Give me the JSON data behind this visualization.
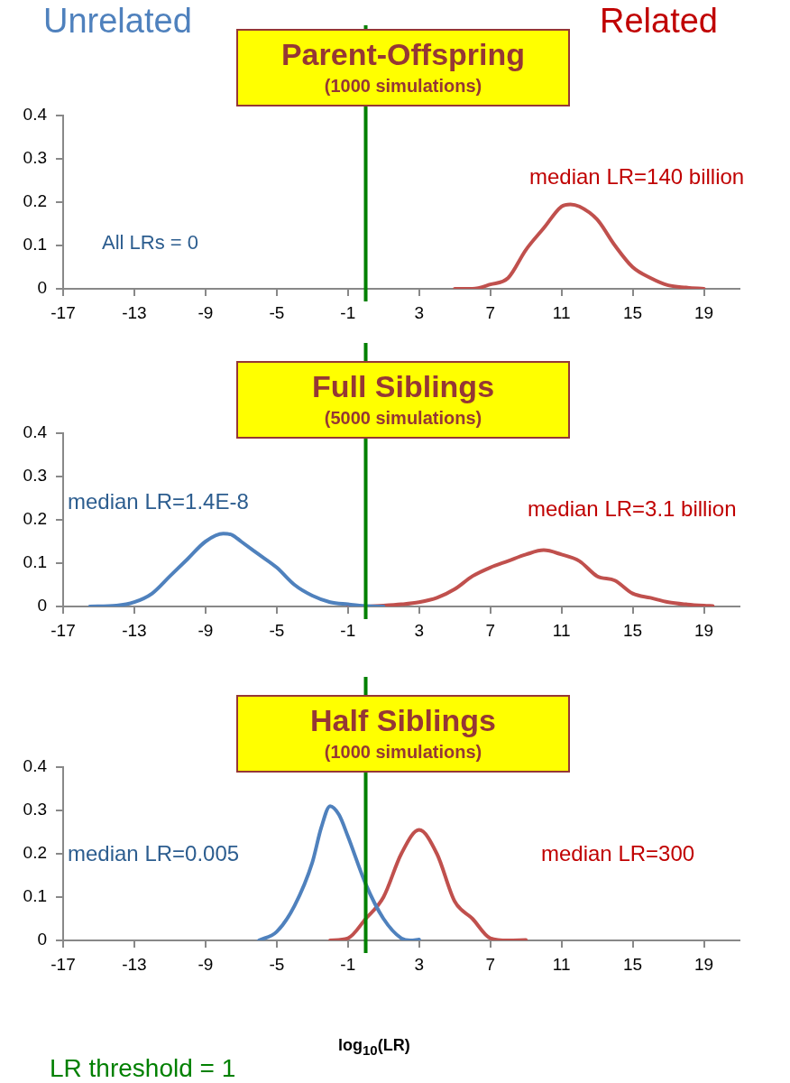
{
  "chart_data": [
    {
      "type": "line",
      "title": "Parent-Offspring",
      "subtitle": "(1000 simulations)",
      "xlim": [
        -17,
        21
      ],
      "xticks": [
        -17,
        -13,
        -9,
        -5,
        -1,
        3,
        7,
        11,
        15,
        19
      ],
      "ylim": [
        0,
        0.4
      ],
      "yticks": [
        0,
        0.1,
        0.2,
        0.3,
        0.4
      ],
      "grid": false,
      "legend": false,
      "marker": "none",
      "line_style": "solid",
      "series": [
        {
          "color": "#c0504d",
          "x": [
            5,
            6,
            7,
            8,
            9,
            10,
            11,
            11.5,
            12,
            13,
            14,
            15,
            16,
            17,
            18,
            19
          ],
          "values": [
            0,
            0,
            0.01,
            0.025,
            0.09,
            0.14,
            0.19,
            0.195,
            0.19,
            0.16,
            0.1,
            0.05,
            0.025,
            0.008,
            0.003,
            0
          ]
        }
      ],
      "ref_lines": [
        {
          "axis": "x",
          "value": 0,
          "color": "#008000"
        }
      ],
      "annotations": [
        "Unrelated",
        "Related",
        "All LRs = 0",
        "median LR=140 billion"
      ]
    },
    {
      "type": "line",
      "title": "Full Siblings",
      "subtitle": "(5000 simulations)",
      "xlim": [
        -17,
        21
      ],
      "xticks": [
        -17,
        -13,
        -9,
        -5,
        -1,
        3,
        7,
        11,
        15,
        19
      ],
      "ylim": [
        0,
        0.4
      ],
      "yticks": [
        0,
        0.1,
        0.2,
        0.3,
        0.4
      ],
      "grid": false,
      "legend": false,
      "marker": "none",
      "line_style": "solid",
      "series": [
        {
          "color": "#4f81bd",
          "x": [
            -15.5,
            -14,
            -13,
            -12,
            -11,
            -10,
            -9,
            -8,
            -7.5,
            -7,
            -6,
            -5,
            -4,
            -3,
            -2,
            -1,
            0,
            1
          ],
          "values": [
            0,
            0.002,
            0.01,
            0.03,
            0.07,
            0.11,
            0.15,
            0.168,
            0.165,
            0.15,
            0.12,
            0.09,
            0.05,
            0.025,
            0.01,
            0.005,
            0.001,
            0
          ]
        },
        {
          "color": "#c0504d",
          "x": [
            -1,
            0,
            1,
            2,
            3,
            4,
            5,
            6,
            7,
            8,
            9,
            10,
            11,
            12,
            13,
            14,
            15,
            16,
            17,
            18,
            19,
            19.5
          ],
          "values": [
            0,
            0,
            0.002,
            0.005,
            0.01,
            0.02,
            0.04,
            0.07,
            0.09,
            0.105,
            0.12,
            0.13,
            0.12,
            0.105,
            0.07,
            0.06,
            0.03,
            0.02,
            0.01,
            0.005,
            0.002,
            0.001
          ]
        }
      ],
      "ref_lines": [
        {
          "axis": "x",
          "value": 0,
          "color": "#008000"
        }
      ],
      "annotations": [
        "median LR=1.4E-8",
        "median LR=3.1 billion"
      ]
    },
    {
      "type": "line",
      "title": "Half Siblings",
      "subtitle": "(1000 simulations)",
      "xlabel": "log$_{10}$(LR)",
      "xlim": [
        -17,
        21
      ],
      "xticks": [
        -17,
        -13,
        -9,
        -5,
        -1,
        3,
        7,
        11,
        15,
        19
      ],
      "ylim": [
        0,
        0.4
      ],
      "yticks": [
        0,
        0.1,
        0.2,
        0.3,
        0.4
      ],
      "grid": false,
      "legend": false,
      "marker": "none",
      "line_style": "solid",
      "series": [
        {
          "color": "#4f81bd",
          "x": [
            -6,
            -5,
            -4,
            -3,
            -2.5,
            -2,
            -1.5,
            -1,
            0,
            1,
            2,
            2.5,
            3
          ],
          "values": [
            0,
            0.02,
            0.08,
            0.18,
            0.26,
            0.31,
            0.29,
            0.24,
            0.13,
            0.05,
            0.005,
            0,
            0.002
          ]
        },
        {
          "color": "#c0504d",
          "x": [
            -2,
            -1,
            0,
            1,
            2,
            3,
            4,
            5,
            6,
            7,
            8,
            9
          ],
          "values": [
            0,
            0.005,
            0.05,
            0.1,
            0.2,
            0.255,
            0.2,
            0.09,
            0.05,
            0.005,
            0,
            0.001
          ]
        }
      ],
      "ref_lines": [
        {
          "axis": "x",
          "value": 0,
          "color": "#008000"
        }
      ],
      "annotations": [
        "median LR=0.005",
        "median LR=300",
        "LR threshold = 1"
      ]
    }
  ]
}
